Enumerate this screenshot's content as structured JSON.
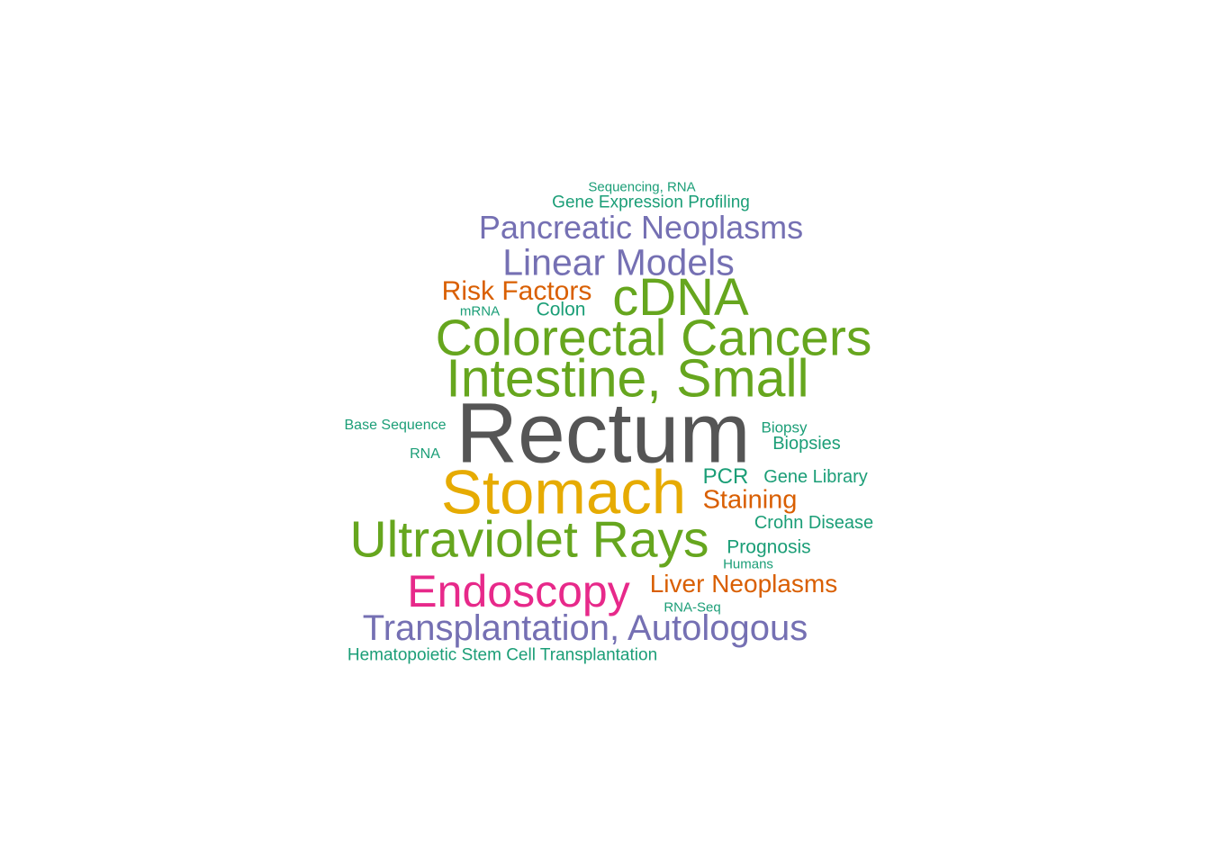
{
  "colors": {
    "teal": "#1b9e77",
    "orange": "#d95f02",
    "purple": "#7570b3",
    "magenta": "#e7298a",
    "green": "#66a61e",
    "gold": "#e6ab02",
    "gray": "#555555"
  },
  "words": [
    {
      "text": "Sequencing, RNA",
      "color": "teal"
    },
    {
      "text": "Gene Expression Profiling",
      "color": "teal"
    },
    {
      "text": "Pancreatic Neoplasms",
      "color": "purple"
    },
    {
      "text": "Linear Models",
      "color": "purple"
    },
    {
      "text": "Risk Factors",
      "color": "orange"
    },
    {
      "text": "cDNA",
      "color": "green"
    },
    {
      "text": "mRNA",
      "color": "teal"
    },
    {
      "text": "Colon",
      "color": "teal"
    },
    {
      "text": "Colorectal Cancers",
      "color": "green"
    },
    {
      "text": "Intestine, Small",
      "color": "green"
    },
    {
      "text": "Base Sequence",
      "color": "teal"
    },
    {
      "text": "Rectum",
      "color": "gray"
    },
    {
      "text": "Biopsy",
      "color": "teal"
    },
    {
      "text": "Biopsies",
      "color": "teal"
    },
    {
      "text": "RNA",
      "color": "teal"
    },
    {
      "text": "Stomach",
      "color": "gold"
    },
    {
      "text": "PCR",
      "color": "teal"
    },
    {
      "text": "Gene Library",
      "color": "teal"
    },
    {
      "text": "Staining",
      "color": "orange"
    },
    {
      "text": "Crohn Disease",
      "color": "teal"
    },
    {
      "text": "Ultraviolet Rays",
      "color": "green"
    },
    {
      "text": "Prognosis",
      "color": "teal"
    },
    {
      "text": "Humans",
      "color": "teal"
    },
    {
      "text": "Endoscopy",
      "color": "magenta"
    },
    {
      "text": "Liver Neoplasms",
      "color": "orange"
    },
    {
      "text": "RNA-Seq",
      "color": "teal"
    },
    {
      "text": "Transplantation, Autologous",
      "color": "purple"
    },
    {
      "text": "Hematopoietic Stem Cell Transplantation",
      "color": "teal"
    }
  ]
}
